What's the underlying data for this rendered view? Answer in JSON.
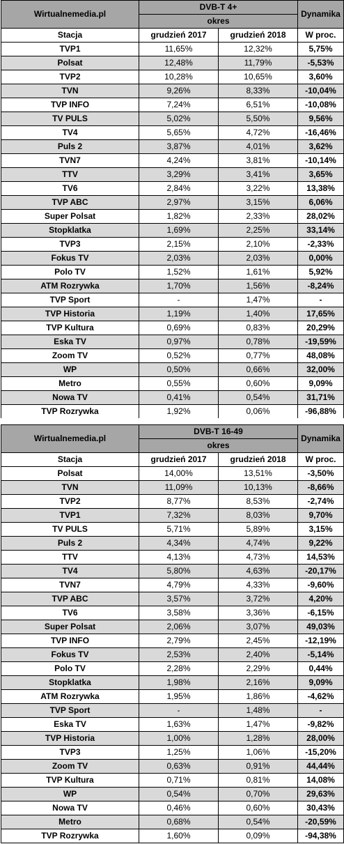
{
  "tables": [
    {
      "site": "Wirtualnemedia.pl",
      "group": "DVB-T 4+",
      "period": "okres",
      "change": "Dynamika",
      "col_station": "Stacja",
      "col_2017": "grudzień 2017",
      "col_2018": "grudzień 2018",
      "col_pct": "W proc.",
      "rows": [
        {
          "station": "TVP1",
          "v2017": "11,65%",
          "v2018": "12,32%",
          "pct": "5,75%"
        },
        {
          "station": "Polsat",
          "v2017": "12,48%",
          "v2018": "11,79%",
          "pct": "-5,53%"
        },
        {
          "station": "TVP2",
          "v2017": "10,28%",
          "v2018": "10,65%",
          "pct": "3,60%"
        },
        {
          "station": "TVN",
          "v2017": "9,26%",
          "v2018": "8,33%",
          "pct": "-10,04%"
        },
        {
          "station": "TVP INFO",
          "v2017": "7,24%",
          "v2018": "6,51%",
          "pct": "-10,08%"
        },
        {
          "station": "TV PULS",
          "v2017": "5,02%",
          "v2018": "5,50%",
          "pct": "9,56%"
        },
        {
          "station": "TV4",
          "v2017": "5,65%",
          "v2018": "4,72%",
          "pct": "-16,46%"
        },
        {
          "station": "Puls 2",
          "v2017": "3,87%",
          "v2018": "4,01%",
          "pct": "3,62%"
        },
        {
          "station": "TVN7",
          "v2017": "4,24%",
          "v2018": "3,81%",
          "pct": "-10,14%"
        },
        {
          "station": "TTV",
          "v2017": "3,29%",
          "v2018": "3,41%",
          "pct": "3,65%"
        },
        {
          "station": "TV6",
          "v2017": "2,84%",
          "v2018": "3,22%",
          "pct": "13,38%"
        },
        {
          "station": "TVP ABC",
          "v2017": "2,97%",
          "v2018": "3,15%",
          "pct": "6,06%"
        },
        {
          "station": "Super Polsat",
          "v2017": "1,82%",
          "v2018": "2,33%",
          "pct": "28,02%"
        },
        {
          "station": "Stopklatka",
          "v2017": "1,69%",
          "v2018": "2,25%",
          "pct": "33,14%"
        },
        {
          "station": "TVP3",
          "v2017": "2,15%",
          "v2018": "2,10%",
          "pct": "-2,33%"
        },
        {
          "station": "Fokus TV",
          "v2017": "2,03%",
          "v2018": "2,03%",
          "pct": "0,00%"
        },
        {
          "station": "Polo TV",
          "v2017": "1,52%",
          "v2018": "1,61%",
          "pct": "5,92%"
        },
        {
          "station": "ATM Rozrywka",
          "v2017": "1,70%",
          "v2018": "1,56%",
          "pct": "-8,24%"
        },
        {
          "station": "TVP Sport",
          "v2017": "-",
          "v2018": "1,47%",
          "pct": "-"
        },
        {
          "station": "TVP Historia",
          "v2017": "1,19%",
          "v2018": "1,40%",
          "pct": "17,65%"
        },
        {
          "station": "TVP Kultura",
          "v2017": "0,69%",
          "v2018": "0,83%",
          "pct": "20,29%"
        },
        {
          "station": "Eska TV",
          "v2017": "0,97%",
          "v2018": "0,78%",
          "pct": "-19,59%"
        },
        {
          "station": "Zoom TV",
          "v2017": "0,52%",
          "v2018": "0,77%",
          "pct": "48,08%"
        },
        {
          "station": "WP",
          "v2017": "0,50%",
          "v2018": "0,66%",
          "pct": "32,00%"
        },
        {
          "station": "Metro",
          "v2017": "0,55%",
          "v2018": "0,60%",
          "pct": "9,09%"
        },
        {
          "station": "Nowa TV",
          "v2017": "0,41%",
          "v2018": "0,54%",
          "pct": "31,71%"
        },
        {
          "station": "TVP Rozrywka",
          "v2017": "1,92%",
          "v2018": "0,06%",
          "pct": "-96,88%"
        }
      ]
    },
    {
      "site": "Wirtualnemedia.pl",
      "group": "DVB-T 16-49",
      "period": "okres",
      "change": "Dynamika",
      "col_station": "Stacja",
      "col_2017": "grudzień 2017",
      "col_2018": "grudzień 2018",
      "col_pct": "W proc.",
      "rows": [
        {
          "station": "Polsat",
          "v2017": "14,00%",
          "v2018": "13,51%",
          "pct": "-3,50%"
        },
        {
          "station": "TVN",
          "v2017": "11,09%",
          "v2018": "10,13%",
          "pct": "-8,66%"
        },
        {
          "station": "TVP2",
          "v2017": "8,77%",
          "v2018": "8,53%",
          "pct": "-2,74%"
        },
        {
          "station": "TVP1",
          "v2017": "7,32%",
          "v2018": "8,03%",
          "pct": "9,70%"
        },
        {
          "station": "TV PULS",
          "v2017": "5,71%",
          "v2018": "5,89%",
          "pct": "3,15%"
        },
        {
          "station": "Puls 2",
          "v2017": "4,34%",
          "v2018": "4,74%",
          "pct": "9,22%"
        },
        {
          "station": "TTV",
          "v2017": "4,13%",
          "v2018": "4,73%",
          "pct": "14,53%"
        },
        {
          "station": "TV4",
          "v2017": "5,80%",
          "v2018": "4,63%",
          "pct": "-20,17%"
        },
        {
          "station": "TVN7",
          "v2017": "4,79%",
          "v2018": "4,33%",
          "pct": "-9,60%"
        },
        {
          "station": "TVP ABC",
          "v2017": "3,57%",
          "v2018": "3,72%",
          "pct": "4,20%"
        },
        {
          "station": "TV6",
          "v2017": "3,58%",
          "v2018": "3,36%",
          "pct": "-6,15%"
        },
        {
          "station": "Super Polsat",
          "v2017": "2,06%",
          "v2018": "3,07%",
          "pct": "49,03%"
        },
        {
          "station": "TVP INFO",
          "v2017": "2,79%",
          "v2018": "2,45%",
          "pct": "-12,19%"
        },
        {
          "station": "Fokus TV",
          "v2017": "2,53%",
          "v2018": "2,40%",
          "pct": "-5,14%"
        },
        {
          "station": "Polo TV",
          "v2017": "2,28%",
          "v2018": "2,29%",
          "pct": "0,44%"
        },
        {
          "station": "Stopklatka",
          "v2017": "1,98%",
          "v2018": "2,16%",
          "pct": "9,09%"
        },
        {
          "station": "ATM Rozrywka",
          "v2017": "1,95%",
          "v2018": "1,86%",
          "pct": "-4,62%"
        },
        {
          "station": "TVP Sport",
          "v2017": "-",
          "v2018": "1,48%",
          "pct": "-"
        },
        {
          "station": "Eska TV",
          "v2017": "1,63%",
          "v2018": "1,47%",
          "pct": "-9,82%"
        },
        {
          "station": "TVP Historia",
          "v2017": "1,00%",
          "v2018": "1,28%",
          "pct": "28,00%"
        },
        {
          "station": "TVP3",
          "v2017": "1,25%",
          "v2018": "1,06%",
          "pct": "-15,20%"
        },
        {
          "station": "Zoom TV",
          "v2017": "0,63%",
          "v2018": "0,91%",
          "pct": "44,44%"
        },
        {
          "station": "TVP Kultura",
          "v2017": "0,71%",
          "v2018": "0,81%",
          "pct": "14,08%"
        },
        {
          "station": "WP",
          "v2017": "0,54%",
          "v2018": "0,70%",
          "pct": "29,63%"
        },
        {
          "station": "Nowa TV",
          "v2017": "0,46%",
          "v2018": "0,60%",
          "pct": "30,43%"
        },
        {
          "station": "Metro",
          "v2017": "0,68%",
          "v2018": "0,54%",
          "pct": "-20,59%"
        },
        {
          "station": "TVP Rozrywka",
          "v2017": "1,60%",
          "v2018": "0,09%",
          "pct": "-94,38%"
        }
      ]
    }
  ]
}
